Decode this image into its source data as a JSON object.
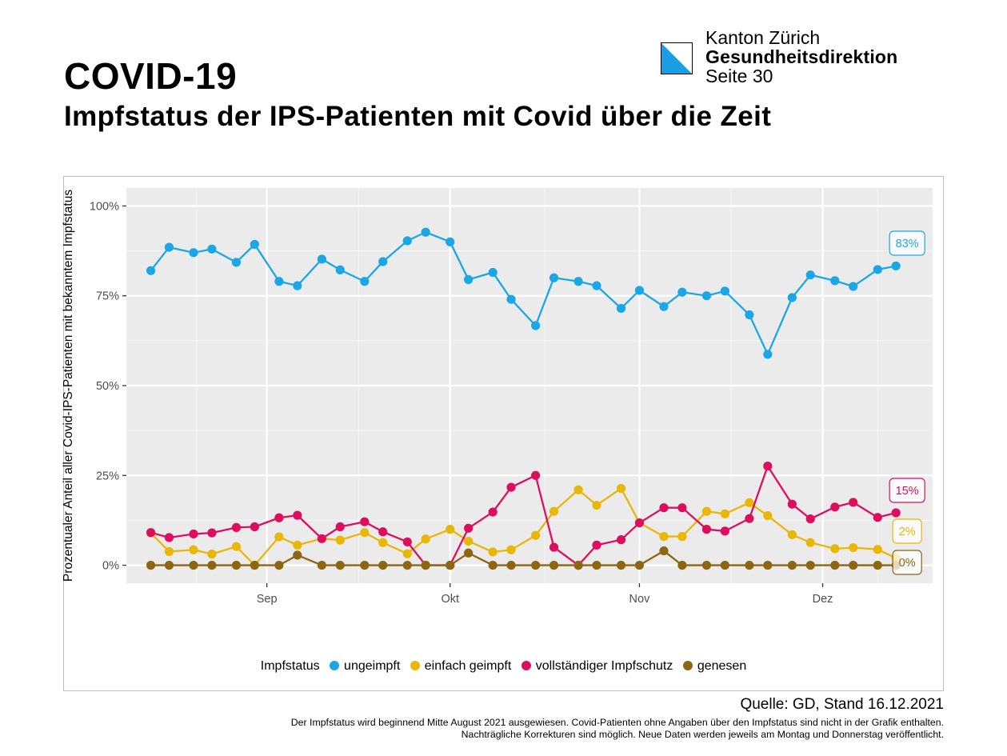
{
  "header": {
    "org_name": "Kanton Zürich",
    "department": "Gesundheitsdirektion",
    "page": "Seite 30",
    "title": "COVID-19",
    "subtitle": "Impfstatus der IPS-Patienten mit Covid über die Zeit"
  },
  "logo": {
    "icon": "zurich-canton-flag-icon",
    "colors": [
      "#1a9ee6",
      "#ffffff"
    ]
  },
  "chart_data": {
    "type": "line",
    "ylabel": "Prozentualer Anteil aller Covid-IPS-Patienten mit bekanntem Impfstatus",
    "xlabel": "",
    "x_axis": {
      "type": "date",
      "range": [
        "2021-08-09",
        "2021-12-19"
      ],
      "tick_labels": [
        "Sep",
        "Okt",
        "Nov",
        "Dez"
      ],
      "tick_dates": [
        "2021-09-01",
        "2021-10-01",
        "2021-11-01",
        "2021-12-01"
      ]
    },
    "y_axis": {
      "range": [
        -5,
        105
      ],
      "ticks": [
        0,
        25,
        50,
        75,
        100
      ],
      "tick_labels": [
        "0%",
        "25%",
        "50%",
        "75%",
        "100%"
      ]
    },
    "grid": true,
    "background": "#ebebeb",
    "legend_title": "Impfstatus",
    "legend_position": "bottom",
    "x": [
      "2021-08-16",
      "2021-08-19",
      "2021-08-23",
      "2021-08-26",
      "2021-08-30",
      "2021-09-02",
      "2021-09-06",
      "2021-09-09",
      "2021-09-13",
      "2021-09-16",
      "2021-09-20",
      "2021-09-23",
      "2021-09-27",
      "2021-09-30",
      "2021-10-04",
      "2021-10-07",
      "2021-10-11",
      "2021-10-14",
      "2021-10-18",
      "2021-10-21",
      "2021-10-25",
      "2021-10-28",
      "2021-11-01",
      "2021-11-04",
      "2021-11-08",
      "2021-11-11",
      "2021-11-15",
      "2021-11-18",
      "2021-11-22",
      "2021-11-25",
      "2021-11-29",
      "2021-12-02",
      "2021-12-06",
      "2021-12-09",
      "2021-12-13",
      "2021-12-16"
    ],
    "series": [
      {
        "name": "ungeimpft",
        "color": "#1ba7e6",
        "end_label": "83%",
        "points": [
          [
            "2021-08-13",
            82
          ],
          [
            "2021-08-16",
            88.5
          ],
          [
            "2021-08-20",
            87
          ],
          [
            "2021-08-23",
            88
          ],
          [
            "2021-08-27",
            84.3
          ],
          [
            "2021-08-30",
            89.3
          ],
          [
            "2021-09-03",
            79
          ],
          [
            "2021-09-06",
            77.8
          ],
          [
            "2021-09-10",
            85.2
          ],
          [
            "2021-09-13",
            82.2
          ],
          [
            "2021-09-17",
            79
          ],
          [
            "2021-09-20",
            84.5
          ],
          [
            "2021-09-24",
            90.3
          ],
          [
            "2021-09-27",
            92.7
          ],
          [
            "2021-10-01",
            90
          ],
          [
            "2021-10-04",
            79.5
          ],
          [
            "2021-10-08",
            81.5
          ],
          [
            "2021-10-11",
            74
          ],
          [
            "2021-10-15",
            66.7
          ],
          [
            "2021-10-18",
            80
          ],
          [
            "2021-10-22",
            79
          ],
          [
            "2021-10-25",
            77.8
          ],
          [
            "2021-10-29",
            71.5
          ],
          [
            "2021-11-01",
            76.5
          ],
          [
            "2021-11-05",
            72
          ],
          [
            "2021-11-08",
            76
          ],
          [
            "2021-11-12",
            75
          ],
          [
            "2021-11-15",
            76.3
          ],
          [
            "2021-11-19",
            69.7
          ],
          [
            "2021-11-22",
            58.7
          ],
          [
            "2021-11-26",
            74.5
          ],
          [
            "2021-11-29",
            80.8
          ],
          [
            "2021-12-03",
            79.2
          ],
          [
            "2021-12-06",
            77.6
          ],
          [
            "2021-12-10",
            82.3
          ],
          [
            "2021-12-13",
            83.3
          ]
        ]
      },
      {
        "name": "einfach geimpft",
        "color": "#e8b707",
        "end_label": "2%",
        "points": [
          [
            "2021-08-13",
            9
          ],
          [
            "2021-08-16",
            3.8
          ],
          [
            "2021-08-20",
            4.3
          ],
          [
            "2021-08-23",
            3.1
          ],
          [
            "2021-08-27",
            5.2
          ],
          [
            "2021-08-30",
            0
          ],
          [
            "2021-09-03",
            7.9
          ],
          [
            "2021-09-06",
            5.6
          ],
          [
            "2021-09-10",
            7.4
          ],
          [
            "2021-09-13",
            7
          ],
          [
            "2021-09-17",
            9.1
          ],
          [
            "2021-09-20",
            6.3
          ],
          [
            "2021-09-24",
            3.2
          ],
          [
            "2021-09-27",
            7.3
          ],
          [
            "2021-10-01",
            10
          ],
          [
            "2021-10-04",
            6.7
          ],
          [
            "2021-10-08",
            3.7
          ],
          [
            "2021-10-11",
            4.3
          ],
          [
            "2021-10-15",
            8.3
          ],
          [
            "2021-10-18",
            15
          ],
          [
            "2021-10-22",
            21
          ],
          [
            "2021-10-25",
            16.7
          ],
          [
            "2021-10-29",
            21.4
          ],
          [
            "2021-11-01",
            11.8
          ],
          [
            "2021-11-05",
            8
          ],
          [
            "2021-11-08",
            8
          ],
          [
            "2021-11-12",
            15
          ],
          [
            "2021-11-15",
            14.3
          ],
          [
            "2021-11-19",
            17.4
          ],
          [
            "2021-11-22",
            13.8
          ],
          [
            "2021-11-26",
            8.5
          ],
          [
            "2021-11-29",
            6.3
          ],
          [
            "2021-12-03",
            4.6
          ],
          [
            "2021-12-06",
            4.9
          ],
          [
            "2021-12-10",
            4.4
          ],
          [
            "2021-12-13",
            2
          ]
        ]
      },
      {
        "name": "vollständiger Impfschutz",
        "color": "#de0e5e",
        "end_label": "15%",
        "points": [
          [
            "2021-08-13",
            9.1
          ],
          [
            "2021-08-16",
            7.7
          ],
          [
            "2021-08-20",
            8.7
          ],
          [
            "2021-08-23",
            9
          ],
          [
            "2021-08-27",
            10.5
          ],
          [
            "2021-08-30",
            10.7
          ],
          [
            "2021-09-03",
            13.2
          ],
          [
            "2021-09-06",
            13.9
          ],
          [
            "2021-09-10",
            7.4
          ],
          [
            "2021-09-13",
            10.7
          ],
          [
            "2021-09-17",
            12.1
          ],
          [
            "2021-09-20",
            9.3
          ],
          [
            "2021-09-24",
            6.5
          ],
          [
            "2021-09-27",
            0
          ],
          [
            "2021-10-01",
            0
          ],
          [
            "2021-10-04",
            10.3
          ],
          [
            "2021-10-08",
            14.8
          ],
          [
            "2021-10-11",
            21.7
          ],
          [
            "2021-10-15",
            25
          ],
          [
            "2021-10-18",
            5
          ],
          [
            "2021-10-22",
            0
          ],
          [
            "2021-10-25",
            5.6
          ],
          [
            "2021-10-29",
            7.1
          ],
          [
            "2021-11-01",
            11.8
          ],
          [
            "2021-11-05",
            16
          ],
          [
            "2021-11-08",
            16
          ],
          [
            "2021-11-12",
            10
          ],
          [
            "2021-11-15",
            9.5
          ],
          [
            "2021-11-19",
            13
          ],
          [
            "2021-11-22",
            27.6
          ],
          [
            "2021-11-26",
            17
          ],
          [
            "2021-11-29",
            12.9
          ],
          [
            "2021-12-03",
            16.2
          ],
          [
            "2021-12-06",
            17.5
          ],
          [
            "2021-12-10",
            13.3
          ],
          [
            "2021-12-13",
            14.6
          ]
        ]
      },
      {
        "name": "genesen",
        "color": "#8c6613",
        "end_label": "0%",
        "points": [
          [
            "2021-08-13",
            0
          ],
          [
            "2021-08-16",
            0
          ],
          [
            "2021-08-20",
            0
          ],
          [
            "2021-08-23",
            0
          ],
          [
            "2021-08-27",
            0
          ],
          [
            "2021-08-30",
            0
          ],
          [
            "2021-09-03",
            0
          ],
          [
            "2021-09-06",
            2.8
          ],
          [
            "2021-09-10",
            0
          ],
          [
            "2021-09-13",
            0
          ],
          [
            "2021-09-17",
            0
          ],
          [
            "2021-09-20",
            0
          ],
          [
            "2021-09-24",
            0
          ],
          [
            "2021-09-27",
            0
          ],
          [
            "2021-10-01",
            0
          ],
          [
            "2021-10-04",
            3.4
          ],
          [
            "2021-10-08",
            0
          ],
          [
            "2021-10-11",
            0
          ],
          [
            "2021-10-15",
            0
          ],
          [
            "2021-10-18",
            0
          ],
          [
            "2021-10-22",
            0
          ],
          [
            "2021-10-25",
            0
          ],
          [
            "2021-10-29",
            0
          ],
          [
            "2021-11-01",
            0
          ],
          [
            "2021-11-05",
            4
          ],
          [
            "2021-11-08",
            0
          ],
          [
            "2021-11-12",
            0
          ],
          [
            "2021-11-15",
            0
          ],
          [
            "2021-11-19",
            0
          ],
          [
            "2021-11-22",
            0
          ],
          [
            "2021-11-26",
            0
          ],
          [
            "2021-11-29",
            0
          ],
          [
            "2021-12-03",
            0
          ],
          [
            "2021-12-06",
            0
          ],
          [
            "2021-12-10",
            0
          ],
          [
            "2021-12-13",
            0
          ]
        ]
      }
    ]
  },
  "footer": {
    "source": "Quelle: GD, Stand 16.12.2021",
    "note_1": "Der Impfstatus wird beginnend Mitte August 2021 ausgewiesen. Covid-Patienten ohne Angaben über den Impfstatus sind nicht in der Grafik enthalten.",
    "note_2": "Nachträgliche Korrekturen sind möglich. Neue Daten werden jeweils am Montag und Donnerstag veröffentlicht."
  }
}
